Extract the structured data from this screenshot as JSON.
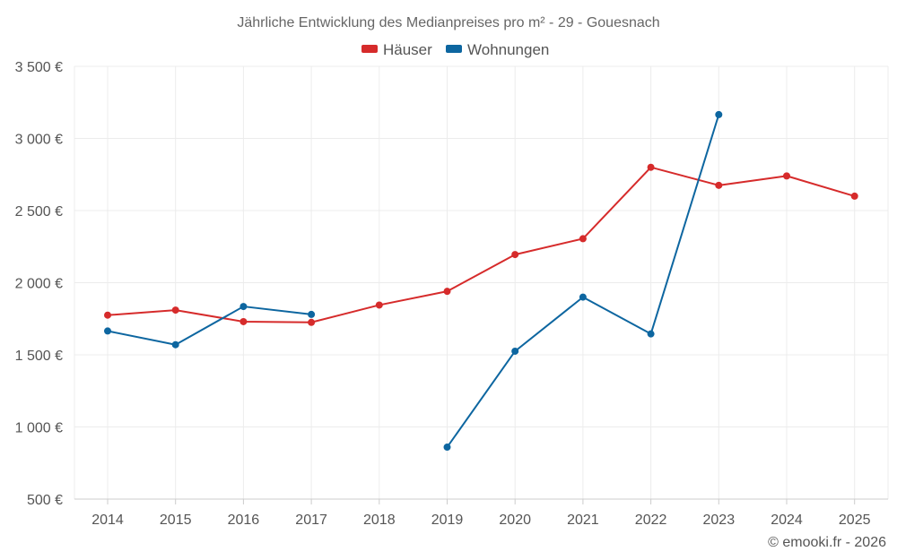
{
  "chart_data": {
    "type": "line",
    "title": "Jährliche Entwicklung des Medianpreises pro m² - 29 - Gouesnach",
    "categories": [
      "2014",
      "2015",
      "2016",
      "2017",
      "2018",
      "2019",
      "2020",
      "2021",
      "2022",
      "2023",
      "2024",
      "2025"
    ],
    "series": [
      {
        "name": "Häuser",
        "color": "#d62b2b",
        "values": [
          1775,
          1810,
          1730,
          1725,
          1845,
          1940,
          2195,
          2305,
          2800,
          2675,
          2740,
          2600
        ]
      },
      {
        "name": "Wohnungen",
        "color": "#0d66a0",
        "values": [
          1665,
          1570,
          1835,
          1780,
          null,
          860,
          1525,
          1900,
          1645,
          3165,
          null,
          null
        ]
      }
    ],
    "ylim": [
      500,
      3500
    ],
    "yticks": [
      500,
      1000,
      1500,
      2000,
      2500,
      3000,
      3500
    ],
    "ytick_labels": [
      "500 €",
      "1 000 €",
      "1 500 €",
      "2 000 €",
      "2 500 €",
      "3 000 €",
      "3 500 €"
    ],
    "xlabel": "",
    "ylabel": "",
    "grid": true,
    "legend_position": "top-center"
  },
  "credit": "© emooki.fr - 2026"
}
